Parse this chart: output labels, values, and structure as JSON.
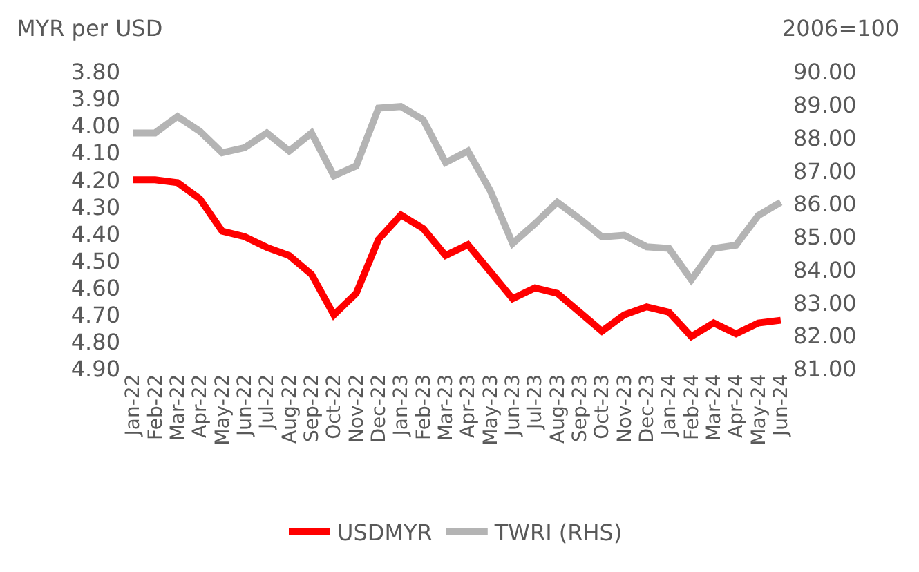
{
  "chart_data": {
    "type": "line",
    "ylabel": "MYR per USD",
    "y2label": "2006=100",
    "categories": [
      "Jan-22",
      "Feb-22",
      "Mar-22",
      "Apr-22",
      "May-22",
      "Jun-22",
      "Jul-22",
      "Aug-22",
      "Sep-22",
      "Oct-22",
      "Nov-22",
      "Dec-22",
      "Jan-23",
      "Feb-23",
      "Mar-23",
      "Apr-23",
      "May-23",
      "Jun-23",
      "Jul-23",
      "Aug-23",
      "Sep-23",
      "Oct-23",
      "Nov-23",
      "Dec-23",
      "Jan-24",
      "Feb-24",
      "Mar-24",
      "Apr-24",
      "May-24",
      "Jun-24"
    ],
    "series": [
      {
        "name": "USDMYR",
        "color": "#ff0000",
        "values": [
          4.2,
          4.2,
          4.21,
          4.27,
          4.39,
          4.41,
          4.45,
          4.48,
          4.55,
          4.7,
          4.62,
          4.42,
          4.33,
          4.38,
          4.48,
          4.44,
          4.54,
          4.64,
          4.6,
          4.62,
          4.69,
          4.76,
          4.7,
          4.67,
          4.69,
          4.78,
          4.73,
          4.77,
          4.73,
          4.72
        ]
      },
      {
        "name": "TWRI (RHS)",
        "color": "#b4b4b4",
        "axis": "y2",
        "values": [
          88.15,
          88.15,
          88.65,
          88.2,
          87.55,
          87.7,
          88.15,
          87.6,
          88.15,
          86.85,
          87.15,
          88.9,
          88.95,
          88.55,
          87.25,
          87.6,
          86.4,
          84.8,
          85.4,
          86.05,
          85.55,
          85.0,
          85.05,
          84.7,
          84.65,
          83.7,
          84.65,
          84.75,
          85.65,
          86.05
        ]
      }
    ],
    "ylim": [
      4.9,
      3.8
    ],
    "yticks": [
      {
        "value": 3.8,
        "label": "3.80"
      },
      {
        "value": 3.9,
        "label": "3.90"
      },
      {
        "value": 4.0,
        "label": "4.00"
      },
      {
        "value": 4.1,
        "label": "4.10"
      },
      {
        "value": 4.2,
        "label": "4.20"
      },
      {
        "value": 4.3,
        "label": "4.30"
      },
      {
        "value": 4.4,
        "label": "4.40"
      },
      {
        "value": 4.5,
        "label": "4.50"
      },
      {
        "value": 4.6,
        "label": "4.60"
      },
      {
        "value": 4.7,
        "label": "4.70"
      },
      {
        "value": 4.8,
        "label": "4.80"
      },
      {
        "value": 4.9,
        "label": "4.90"
      }
    ],
    "y2lim": [
      81,
      90
    ],
    "y2ticks": [
      {
        "value": 81,
        "label": "81.00"
      },
      {
        "value": 82,
        "label": "82.00"
      },
      {
        "value": 83,
        "label": "83.00"
      },
      {
        "value": 84,
        "label": "84.00"
      },
      {
        "value": 85,
        "label": "85.00"
      },
      {
        "value": 86,
        "label": "86.00"
      },
      {
        "value": 87,
        "label": "87.00"
      },
      {
        "value": 88,
        "label": "88.00"
      },
      {
        "value": 89,
        "label": "89.00"
      },
      {
        "value": 90,
        "label": "90.00"
      }
    ],
    "legend": "bottom",
    "marker": "none",
    "line_style": "solid"
  }
}
